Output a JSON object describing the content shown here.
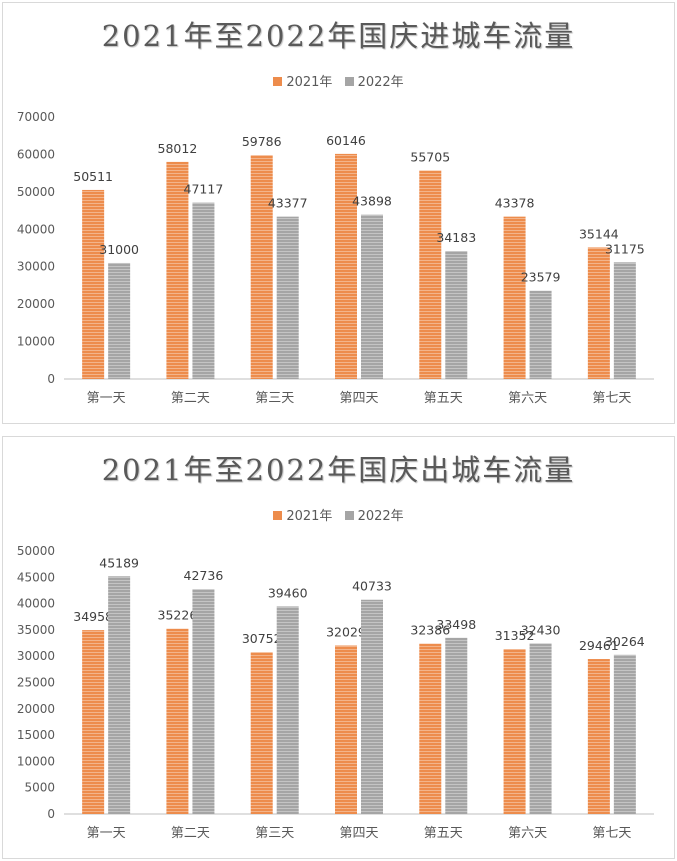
{
  "colors": {
    "series_2021": "#ed8c4c",
    "series_2022": "#a5a5a5"
  },
  "chart_data": [
    {
      "type": "bar",
      "title": "2021年至2022年国庆进城车流量",
      "categories": [
        "第一天",
        "第二天",
        "第三天",
        "第四天",
        "第五天",
        "第六天",
        "第七天"
      ],
      "series": [
        {
          "name": "2021年",
          "values": [
            50511,
            58012,
            59786,
            60146,
            55705,
            43378,
            35144
          ]
        },
        {
          "name": "2022年",
          "values": [
            31000,
            47117,
            43377,
            43898,
            34183,
            23579,
            31175
          ]
        }
      ],
      "ylim": [
        0,
        70000
      ],
      "yticks": [
        0,
        10000,
        20000,
        30000,
        40000,
        50000,
        60000,
        70000
      ],
      "legend": "top",
      "grid": false
    },
    {
      "type": "bar",
      "title": "2021年至2022年国庆出城车流量",
      "categories": [
        "第一天",
        "第二天",
        "第三天",
        "第四天",
        "第五天",
        "第六天",
        "第七天"
      ],
      "series": [
        {
          "name": "2021年",
          "values": [
            34958,
            35226,
            30752,
            32029,
            32386,
            31352,
            29461
          ]
        },
        {
          "name": "2022年",
          "values": [
            45189,
            42736,
            39460,
            40733,
            33498,
            32430,
            30264
          ]
        }
      ],
      "ylim": [
        0,
        50000
      ],
      "yticks": [
        0,
        5000,
        10000,
        15000,
        20000,
        25000,
        30000,
        35000,
        40000,
        45000,
        50000
      ],
      "legend": "top",
      "grid": false
    }
  ]
}
